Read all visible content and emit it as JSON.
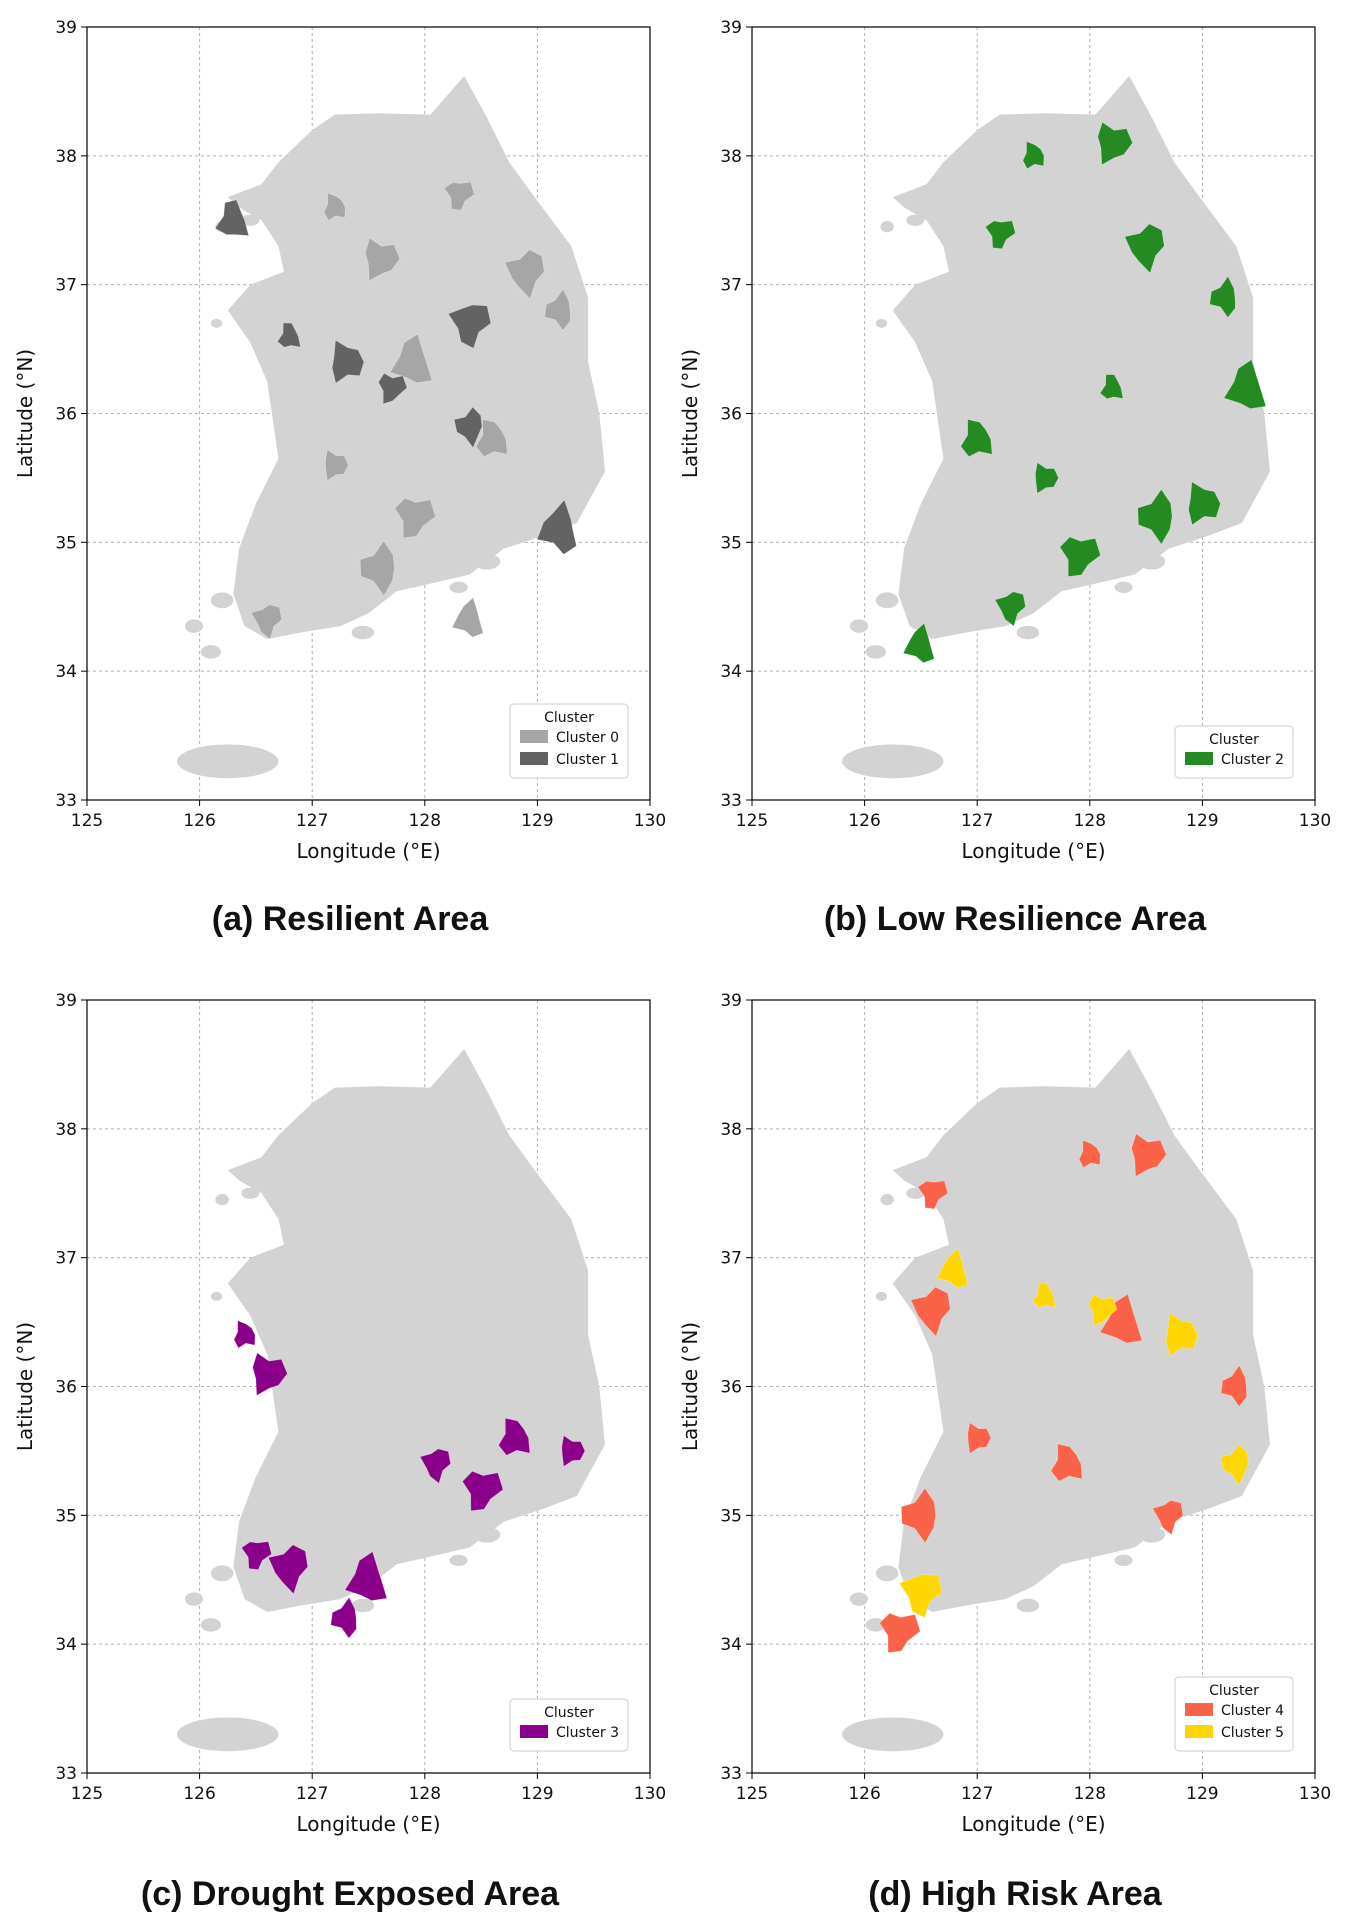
{
  "figure": {
    "panels": [
      {
        "id": "a",
        "caption": "(a) Resilient Area",
        "xlabel": "Longitude (°E)",
        "ylabel": "Latitude (°N)",
        "legend_title": "Cluster",
        "legend_position": "lower-right",
        "legend": [
          {
            "label": "Cluster 0",
            "color": "#a6a6a6"
          },
          {
            "label": "Cluster 1",
            "color": "#636363"
          }
        ],
        "regions": [
          {
            "cluster": 0,
            "lon": 127.2,
            "lat": 37.6
          },
          {
            "cluster": 0,
            "lon": 127.6,
            "lat": 37.2
          },
          {
            "cluster": 0,
            "lon": 128.3,
            "lat": 37.7
          },
          {
            "cluster": 0,
            "lon": 128.9,
            "lat": 37.1
          },
          {
            "cluster": 0,
            "lon": 129.2,
            "lat": 36.8
          },
          {
            "cluster": 0,
            "lon": 127.9,
            "lat": 36.4
          },
          {
            "cluster": 0,
            "lon": 128.6,
            "lat": 35.8
          },
          {
            "cluster": 0,
            "lon": 127.2,
            "lat": 35.6
          },
          {
            "cluster": 0,
            "lon": 127.9,
            "lat": 35.2
          },
          {
            "cluster": 0,
            "lon": 126.6,
            "lat": 34.4
          },
          {
            "cluster": 0,
            "lon": 127.6,
            "lat": 34.8
          },
          {
            "cluster": 0,
            "lon": 128.4,
            "lat": 34.4
          },
          {
            "cluster": 1,
            "lon": 126.8,
            "lat": 36.6
          },
          {
            "cluster": 1,
            "lon": 127.3,
            "lat": 36.4
          },
          {
            "cluster": 1,
            "lon": 127.7,
            "lat": 36.2
          },
          {
            "cluster": 1,
            "lon": 128.4,
            "lat": 36.7
          },
          {
            "cluster": 1,
            "lon": 128.4,
            "lat": 35.9
          },
          {
            "cluster": 1,
            "lon": 129.2,
            "lat": 35.1
          },
          {
            "cluster": 1,
            "lon": 126.3,
            "lat": 37.5
          }
        ]
      },
      {
        "id": "b",
        "caption": "(b) Low Resilience Area",
        "xlabel": "Longitude (°E)",
        "ylabel": "Latitude (°N)",
        "legend_title": "Cluster",
        "legend_position": "lower-right",
        "legend": [
          {
            "label": "Cluster 2",
            "color": "#238b22"
          }
        ],
        "regions": [
          {
            "cluster": 2,
            "lon": 127.5,
            "lat": 38.0
          },
          {
            "cluster": 2,
            "lon": 128.2,
            "lat": 38.1
          },
          {
            "cluster": 2,
            "lon": 127.2,
            "lat": 37.4
          },
          {
            "cluster": 2,
            "lon": 128.5,
            "lat": 37.3
          },
          {
            "cluster": 2,
            "lon": 129.2,
            "lat": 36.9
          },
          {
            "cluster": 2,
            "lon": 129.4,
            "lat": 36.2
          },
          {
            "cluster": 2,
            "lon": 127.0,
            "lat": 35.8
          },
          {
            "cluster": 2,
            "lon": 127.6,
            "lat": 35.5
          },
          {
            "cluster": 2,
            "lon": 127.9,
            "lat": 34.9
          },
          {
            "cluster": 2,
            "lon": 127.3,
            "lat": 34.5
          },
          {
            "cluster": 2,
            "lon": 128.6,
            "lat": 35.2
          },
          {
            "cluster": 2,
            "lon": 126.5,
            "lat": 34.2
          },
          {
            "cluster": 2,
            "lon": 128.2,
            "lat": 36.2
          },
          {
            "cluster": 2,
            "lon": 129.0,
            "lat": 35.3
          }
        ]
      },
      {
        "id": "c",
        "caption": "(c) Drought Exposed Area",
        "xlabel": "Longitude (°E)",
        "ylabel": "Latitude (°N)",
        "legend_title": "Cluster",
        "legend_position": "lower-right",
        "legend": [
          {
            "label": "Cluster 3",
            "color": "#8b008b"
          }
        ],
        "regions": [
          {
            "cluster": 3,
            "lon": 126.4,
            "lat": 36.4
          },
          {
            "cluster": 3,
            "lon": 126.6,
            "lat": 36.1
          },
          {
            "cluster": 3,
            "lon": 126.5,
            "lat": 34.7
          },
          {
            "cluster": 3,
            "lon": 126.8,
            "lat": 34.6
          },
          {
            "cluster": 3,
            "lon": 127.3,
            "lat": 34.2
          },
          {
            "cluster": 3,
            "lon": 127.5,
            "lat": 34.5
          },
          {
            "cluster": 3,
            "lon": 128.8,
            "lat": 35.6
          },
          {
            "cluster": 3,
            "lon": 129.3,
            "lat": 35.5
          },
          {
            "cluster": 3,
            "lon": 128.5,
            "lat": 35.2
          },
          {
            "cluster": 3,
            "lon": 128.1,
            "lat": 35.4
          }
        ]
      },
      {
        "id": "d",
        "caption": "(d) High Risk Area",
        "xlabel": "Longitude (°E)",
        "ylabel": "Latitude (°N)",
        "legend_title": "Cluster",
        "legend_position": "lower-right",
        "legend": [
          {
            "label": "Cluster 4",
            "color": "#fa6347"
          },
          {
            "label": "Cluster 5",
            "color": "#ffd700"
          }
        ],
        "regions": [
          {
            "cluster": 4,
            "lon": 128.0,
            "lat": 37.8
          },
          {
            "cluster": 4,
            "lon": 128.5,
            "lat": 37.8
          },
          {
            "cluster": 4,
            "lon": 126.6,
            "lat": 37.5
          },
          {
            "cluster": 4,
            "lon": 126.6,
            "lat": 36.6
          },
          {
            "cluster": 4,
            "lon": 129.3,
            "lat": 36.0
          },
          {
            "cluster": 4,
            "lon": 128.3,
            "lat": 36.5
          },
          {
            "cluster": 4,
            "lon": 127.8,
            "lat": 35.4
          },
          {
            "cluster": 4,
            "lon": 127.0,
            "lat": 35.6
          },
          {
            "cluster": 4,
            "lon": 126.3,
            "lat": 34.1
          },
          {
            "cluster": 4,
            "lon": 128.7,
            "lat": 35.0
          },
          {
            "cluster": 4,
            "lon": 126.5,
            "lat": 35.0
          },
          {
            "cluster": 5,
            "lon": 126.8,
            "lat": 36.9
          },
          {
            "cluster": 5,
            "lon": 127.6,
            "lat": 36.7
          },
          {
            "cluster": 5,
            "lon": 128.8,
            "lat": 36.4
          },
          {
            "cluster": 5,
            "lon": 128.1,
            "lat": 36.6
          },
          {
            "cluster": 5,
            "lon": 126.5,
            "lat": 34.4
          },
          {
            "cluster": 5,
            "lon": 129.3,
            "lat": 35.4
          }
        ]
      }
    ]
  },
  "chart_data": [
    {
      "type": "map",
      "title": "(a) Resilient Area",
      "xlabel": "Longitude (°E)",
      "ylabel": "Latitude (°N)",
      "xlim": [
        125,
        130
      ],
      "ylim": [
        33,
        39
      ],
      "xticks": [
        125,
        126,
        127,
        128,
        129,
        130
      ],
      "yticks": [
        33,
        34,
        35,
        36,
        37,
        38,
        39
      ],
      "grid": true,
      "legend": [
        "Cluster 0",
        "Cluster 1"
      ],
      "legend_placement": "lower-right"
    },
    {
      "type": "map",
      "title": "(b) Low Resilience Area",
      "xlabel": "Longitude (°E)",
      "ylabel": "Latitude (°N)",
      "xlim": [
        125,
        130
      ],
      "ylim": [
        33,
        39
      ],
      "xticks": [
        125,
        126,
        127,
        128,
        129,
        130
      ],
      "yticks": [
        33,
        34,
        35,
        36,
        37,
        38,
        39
      ],
      "grid": true,
      "legend": [
        "Cluster 2"
      ],
      "legend_placement": "lower-right"
    },
    {
      "type": "map",
      "title": "(c) Drought Exposed Area",
      "xlabel": "Longitude (°E)",
      "ylabel": "Latitude (°N)",
      "xlim": [
        125,
        130
      ],
      "ylim": [
        33,
        39
      ],
      "xticks": [
        125,
        126,
        127,
        128,
        129,
        130
      ],
      "yticks": [
        33,
        34,
        35,
        36,
        37,
        38,
        39
      ],
      "grid": true,
      "legend": [
        "Cluster 3"
      ],
      "legend_placement": "lower-right"
    },
    {
      "type": "map",
      "title": "(d) High Risk Area",
      "xlabel": "Longitude (°E)",
      "ylabel": "Latitude (°N)",
      "xlim": [
        125,
        130
      ],
      "ylim": [
        33,
        39
      ],
      "xticks": [
        125,
        126,
        127,
        128,
        129,
        130
      ],
      "yticks": [
        33,
        34,
        35,
        36,
        37,
        38,
        39
      ],
      "grid": true,
      "legend": [
        "Cluster 4",
        "Cluster 5"
      ],
      "legend_placement": "lower-right"
    }
  ],
  "colors": {
    "land": "#d3d3d3",
    "grid": "#b0b0b0",
    "axis": "#000000",
    "text": "#111111"
  }
}
